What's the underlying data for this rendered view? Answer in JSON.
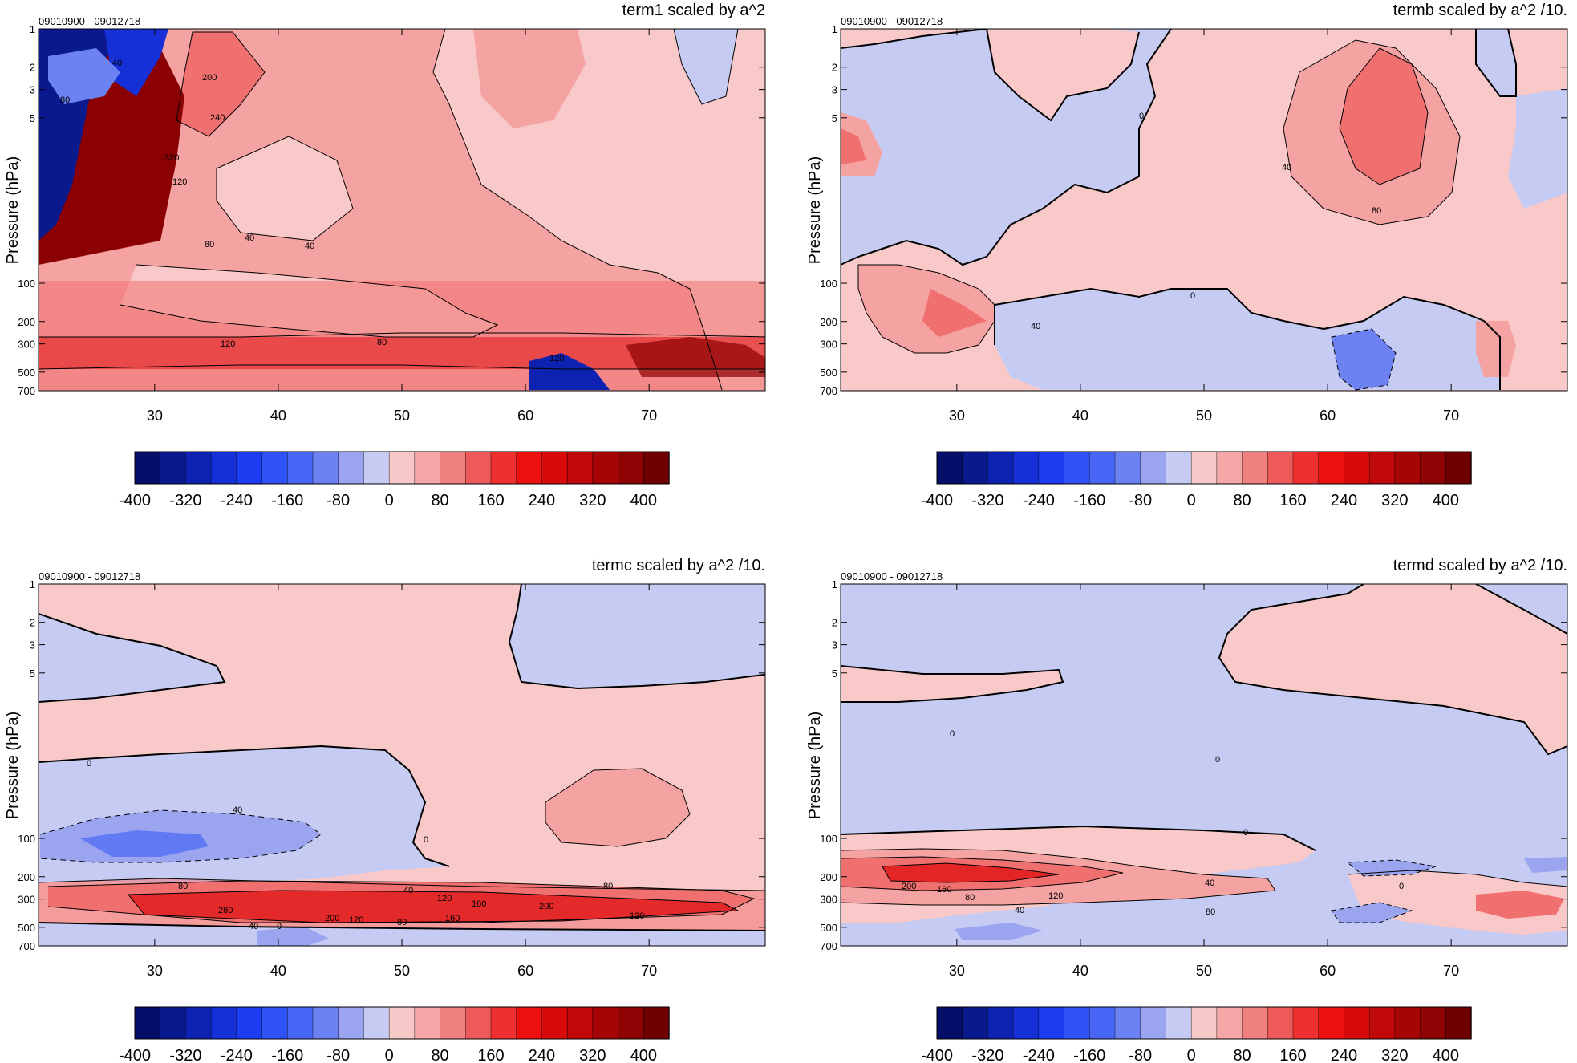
{
  "panels": [
    {
      "date_range": "09010900 - 09012718",
      "title": "term1 scaled by a^2"
    },
    {
      "date_range": "09010900 - 09012718",
      "title": "termb scaled by a^2 /10."
    },
    {
      "date_range": "09010900 - 09012718",
      "title": "termc scaled by a^2 /10."
    },
    {
      "date_range": "09010900 - 09012718",
      "title": "termd scaled by a^2 /10."
    }
  ],
  "colors": {
    "colorbar": [
      "#050e69",
      "#0a1a8e",
      "#0e22b2",
      "#1430d6",
      "#1b3cf0",
      "#2e52f5",
      "#4866f5",
      "#6c82f3",
      "#9aa4ef",
      "#c6cbf3",
      "#f6c8c8",
      "#f5a6a6",
      "#f18080",
      "#ee5a5a",
      "#f03030",
      "#ee0f0f",
      "#d80a0a",
      "#c00808",
      "#a60505",
      "#8d0202",
      "#700000"
    ],
    "neg_light": "#c6cbf3",
    "neg_mid": "#9aa4ef",
    "neg_dark": "#4866f5",
    "pos_light": "#f9c9c9",
    "pos_mid": "#f5a2a2",
    "pos_strong": "#f07070",
    "pos_deep": "#e01818",
    "pos_darkest": "#8b0000",
    "blue_darkest": "#0a1a8e"
  },
  "chart_data": [
    {
      "type": "heatmap",
      "title": "term1 scaled by a^2",
      "subtitle": "09010900 - 09012718",
      "ylabel": "Pressure (hPa)",
      "xlabel": "",
      "x_ticks": [
        30,
        40,
        50,
        60,
        70
      ],
      "y_ticks": [
        1,
        2,
        3,
        5,
        100,
        200,
        300,
        500,
        700
      ],
      "y_scale": "log",
      "xlim": [
        20.6,
        79.4
      ],
      "ylim": [
        1,
        700
      ],
      "contour_labels": [
        "40",
        "80",
        "40",
        "80",
        "120",
        "200",
        "240",
        "320",
        "40",
        "80",
        "120",
        "120"
      ],
      "colorbar_ticks": [
        "-400",
        "-320",
        "-240",
        "-160",
        "-80",
        "0",
        "80",
        "160",
        "240",
        "320",
        "400"
      ]
    },
    {
      "type": "heatmap",
      "title": "termb scaled by a^2 /10.",
      "subtitle": "09010900 - 09012718",
      "ylabel": "Pressure (hPa)",
      "xlabel": "",
      "x_ticks": [
        30,
        40,
        50,
        60,
        70
      ],
      "y_ticks": [
        1,
        2,
        3,
        5,
        100,
        200,
        300,
        500,
        700
      ],
      "y_scale": "log",
      "xlim": [
        20.6,
        79.4
      ],
      "ylim": [
        1,
        700
      ],
      "contour_labels": [
        "0",
        "40",
        "80",
        "0",
        "40"
      ],
      "colorbar_ticks": [
        "-400",
        "-320",
        "-240",
        "-160",
        "-80",
        "0",
        "80",
        "160",
        "240",
        "320",
        "400"
      ]
    },
    {
      "type": "heatmap",
      "title": "termc scaled by a^2 /10.",
      "subtitle": "09010900 - 09012718",
      "ylabel": "Pressure (hPa)",
      "xlabel": "",
      "x_ticks": [
        30,
        40,
        50,
        60,
        70
      ],
      "y_ticks": [
        1,
        2,
        3,
        5,
        100,
        200,
        300,
        500,
        700
      ],
      "y_scale": "log",
      "xlim": [
        20.6,
        79.4
      ],
      "ylim": [
        1,
        700
      ],
      "contour_labels": [
        "0",
        "40",
        "0",
        "80",
        "40",
        "120",
        "160",
        "200",
        "80",
        "280",
        "200",
        "120",
        "80",
        "160",
        "120",
        "40",
        "0"
      ],
      "colorbar_ticks": [
        "-400",
        "-320",
        "-240",
        "-160",
        "-80",
        "0",
        "80",
        "160",
        "240",
        "320",
        "400"
      ]
    },
    {
      "type": "heatmap",
      "title": "termd scaled by a^2 /10.",
      "subtitle": "09010900 - 09012718",
      "ylabel": "Pressure (hPa)",
      "xlabel": "",
      "x_ticks": [
        30,
        40,
        50,
        60,
        70
      ],
      "y_ticks": [
        1,
        2,
        3,
        5,
        100,
        200,
        300,
        500,
        700
      ],
      "y_scale": "log",
      "xlim": [
        20.6,
        79.4
      ],
      "ylim": [
        1,
        700
      ],
      "contour_labels": [
        "0",
        "0",
        "0",
        "40",
        "200",
        "160",
        "80",
        "120",
        "40",
        "0",
        "80"
      ],
      "colorbar_ticks": [
        "-400",
        "-320",
        "-240",
        "-160",
        "-80",
        "0",
        "80",
        "160",
        "240",
        "320",
        "400"
      ]
    }
  ]
}
